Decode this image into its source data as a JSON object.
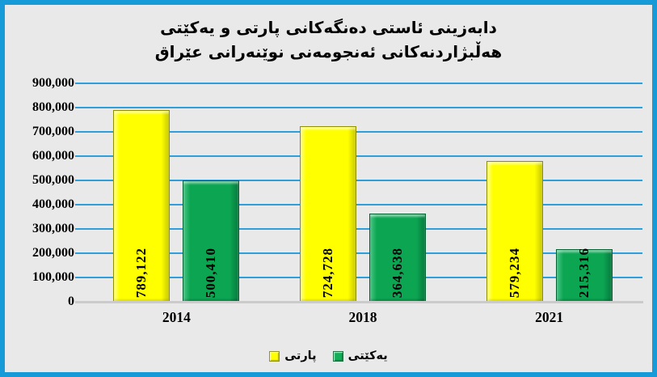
{
  "title": {
    "line1": "دابەزینی ئاستی دەنگەکانی پارتی و یەکێتی",
    "line2": "هەڵبژاردنەکانی ئەنجومەنی نوێنەرانی عێراق"
  },
  "chart_data": {
    "type": "bar",
    "title": "دابەزینی ئاستی دەنگەکانی پارتی و یەکێتی هەڵبژاردنەکانی ئەنجومەنی نوێنەرانی عێراق",
    "categories": [
      "2014",
      "2018",
      "2021"
    ],
    "series": [
      {
        "name": "پارتی",
        "color": "#FFFF00",
        "values": [
          789122,
          724728,
          579234
        ],
        "labels": [
          "789,122",
          "724,728",
          "579,234"
        ]
      },
      {
        "name": "یەکێتی",
        "color": "#0CA653",
        "values": [
          500410,
          364638,
          215316
        ],
        "labels": [
          "500,410",
          "364,638",
          "215,316"
        ]
      }
    ],
    "ylim": [
      0,
      900000
    ],
    "ytick_step": 100000,
    "yticks": [
      "900,000",
      "800,000",
      "700,000",
      "600,000",
      "500,000",
      "400,000",
      "300,000",
      "200,000",
      "100,000",
      "0"
    ],
    "grid": true,
    "legend_position": "bottom",
    "data_label_rotation": "vertical-bottom-to-top"
  },
  "colors": {
    "frame_border": "#179BD8",
    "background": "#E9E9E9",
    "gridline": "#2E9FD9",
    "axis_line": "#CBCBCB",
    "bar_party": "#FFFF00",
    "bar_yekiti": "#0CA653",
    "text": "#000000"
  }
}
